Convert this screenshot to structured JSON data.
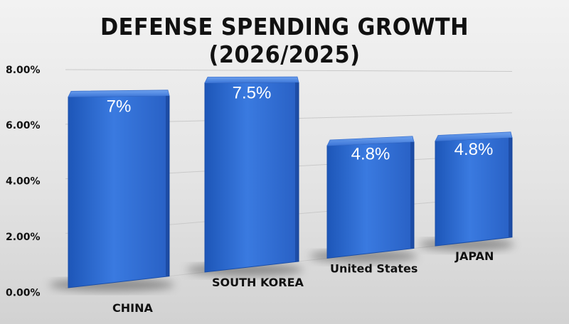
{
  "chart_data": {
    "type": "bar",
    "title": "DEFENSE SPENDING GROWTH (2026/2025)",
    "categories": [
      "CHINA",
      "SOUTH KOREA",
      "United States",
      "JAPAN"
    ],
    "values": [
      7,
      7.5,
      4.8,
      4.8
    ],
    "data_labels": [
      "7%",
      "7.5%",
      "4.8%",
      "4.8%"
    ],
    "y_ticks": [
      "0.00%",
      "2.00%",
      "4.00%",
      "6.00%",
      "8.00%"
    ],
    "ylim": [
      0,
      8
    ],
    "grid": true,
    "bar_color": "#2f6fd6"
  }
}
